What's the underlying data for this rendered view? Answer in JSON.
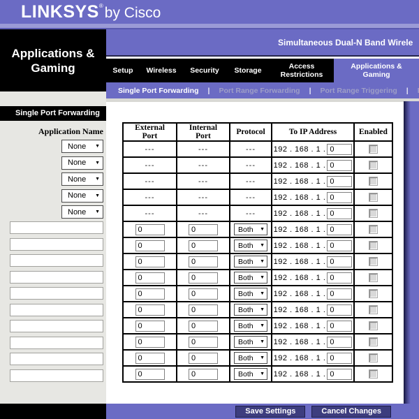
{
  "brand": {
    "logo": "LINKSYS",
    "reg_mark": "®",
    "byline": "by Cisco"
  },
  "header": {
    "product_name": "Simultaneous Dual-N Band Wirele",
    "section_title": "Applications & Gaming"
  },
  "nav": {
    "tabs": [
      {
        "label": "Setup"
      },
      {
        "label": "Wireless"
      },
      {
        "label": "Security"
      },
      {
        "label": "Storage"
      },
      {
        "label": "Access Restrictions"
      },
      {
        "label": "Applications & Gaming"
      }
    ]
  },
  "subnav": {
    "separator": "|",
    "items": [
      {
        "label": "Single Port Forwarding"
      },
      {
        "label": "Port Range Forwarding"
      },
      {
        "label": "Port Range Triggering"
      },
      {
        "label": "D"
      }
    ]
  },
  "sidebar": {
    "header": "Single Port Forwarding",
    "application_name_label": "Application Name",
    "app_dropdowns": [
      "None",
      "None",
      "None",
      "None",
      "None"
    ],
    "app_inputs": [
      "",
      "",
      "",
      "",
      "",
      "",
      "",
      "",
      "",
      ""
    ]
  },
  "table": {
    "headers": [
      "External Port",
      "Internal Port",
      "Protocol",
      "To IP Address",
      "Enabled"
    ],
    "ip_prefix": "192 . 168 . 1 .",
    "static_rows": [
      {
        "external": "---",
        "internal": "---",
        "protocol": "---",
        "ip_last": "0"
      },
      {
        "external": "---",
        "internal": "---",
        "protocol": "---",
        "ip_last": "0"
      },
      {
        "external": "---",
        "internal": "---",
        "protocol": "---",
        "ip_last": "0"
      },
      {
        "external": "---",
        "internal": "---",
        "protocol": "---",
        "ip_last": "0"
      },
      {
        "external": "---",
        "internal": "---",
        "protocol": "---",
        "ip_last": "0"
      }
    ],
    "input_rows": [
      {
        "external": "0",
        "internal": "0",
        "protocol": "Both",
        "ip_last": "0"
      },
      {
        "external": "0",
        "internal": "0",
        "protocol": "Both",
        "ip_last": "0"
      },
      {
        "external": "0",
        "internal": "0",
        "protocol": "Both",
        "ip_last": "0"
      },
      {
        "external": "0",
        "internal": "0",
        "protocol": "Both",
        "ip_last": "0"
      },
      {
        "external": "0",
        "internal": "0",
        "protocol": "Both",
        "ip_last": "0"
      },
      {
        "external": "0",
        "internal": "0",
        "protocol": "Both",
        "ip_last": "0"
      },
      {
        "external": "0",
        "internal": "0",
        "protocol": "Both",
        "ip_last": "0"
      },
      {
        "external": "0",
        "internal": "0",
        "protocol": "Both",
        "ip_last": "0"
      },
      {
        "external": "0",
        "internal": "0",
        "protocol": "Both",
        "ip_last": "0"
      },
      {
        "external": "0",
        "internal": "0",
        "protocol": "Both",
        "ip_last": "0"
      }
    ]
  },
  "footer": {
    "save_label": "Save Settings",
    "cancel_label": "Cancel Changes"
  },
  "colors": {
    "purple": "#6b6bc4",
    "navy_button": "#3d3d7e",
    "sidebar_gray": "#e7e7e3",
    "muted_link": "#9e9ec7"
  }
}
